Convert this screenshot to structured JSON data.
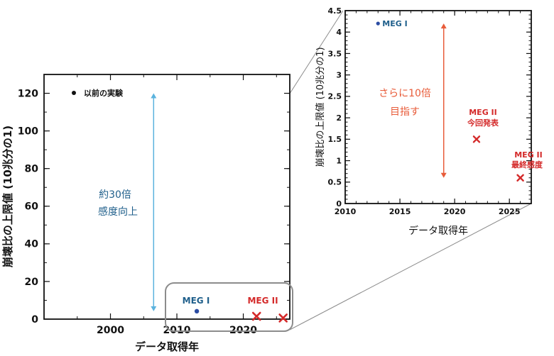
{
  "chart_data": [
    {
      "type": "scatter",
      "xlabel": "データ取得年",
      "ylabel": "崩壊比の上限値 (10兆分の1)",
      "xlim": [
        1990,
        2027
      ],
      "ylim": [
        0,
        130
      ],
      "xticks": [
        2000,
        2010,
        2020
      ],
      "yticks": [
        0,
        20,
        40,
        60,
        80,
        100,
        120
      ],
      "legend": "以前の実験",
      "series": [
        {
          "name": "MEG I",
          "marker": "dot",
          "x": [
            2013
          ],
          "y": [
            4.2
          ]
        },
        {
          "name": "MEG II",
          "marker": "x",
          "x": [
            2022,
            2026
          ],
          "y": [
            1.5,
            0.6
          ]
        }
      ],
      "labels": {
        "meg1": "MEG I",
        "meg2": "MEG II"
      },
      "annotation": {
        "line1": "約30倍",
        "line2": "感度向上",
        "from": 4.2,
        "to": 120,
        "x": 2006.5
      }
    },
    {
      "type": "scatter",
      "xlabel": "データ取得年",
      "ylabel": "崩壊比の上限値 (10兆分の1)",
      "xlim": [
        2010,
        2027
      ],
      "ylim": [
        0,
        4.5
      ],
      "xticks": [
        2010,
        2015,
        2020,
        2025
      ],
      "yticks": [
        0,
        0.5,
        1,
        1.5,
        2,
        2.5,
        3,
        3.5,
        4,
        4.5
      ],
      "series": [
        {
          "name": "MEG I",
          "marker": "dot",
          "x": [
            2013
          ],
          "y": [
            4.2
          ]
        },
        {
          "name": "MEG II",
          "marker": "x",
          "x": [
            2022,
            2026
          ],
          "y": [
            1.5,
            0.6
          ]
        }
      ],
      "labels": {
        "meg1": "MEG I",
        "meg2a_1": "MEG II",
        "meg2a_2": "今回発表",
        "meg2b_1": "MEG II",
        "meg2b_2": "最終感度"
      },
      "annotation": {
        "line1": "さらに10倍",
        "line2": "目指す",
        "from": 0.6,
        "to": 4.2,
        "x": 2019
      }
    }
  ],
  "colors": {
    "meg1": "#2b4ca3",
    "meg2": "#d42a2a",
    "cyan": "#5bb3de",
    "orange": "#e85c3a",
    "dark": "#1f5f8b",
    "zoom": "#8c8c8c"
  }
}
